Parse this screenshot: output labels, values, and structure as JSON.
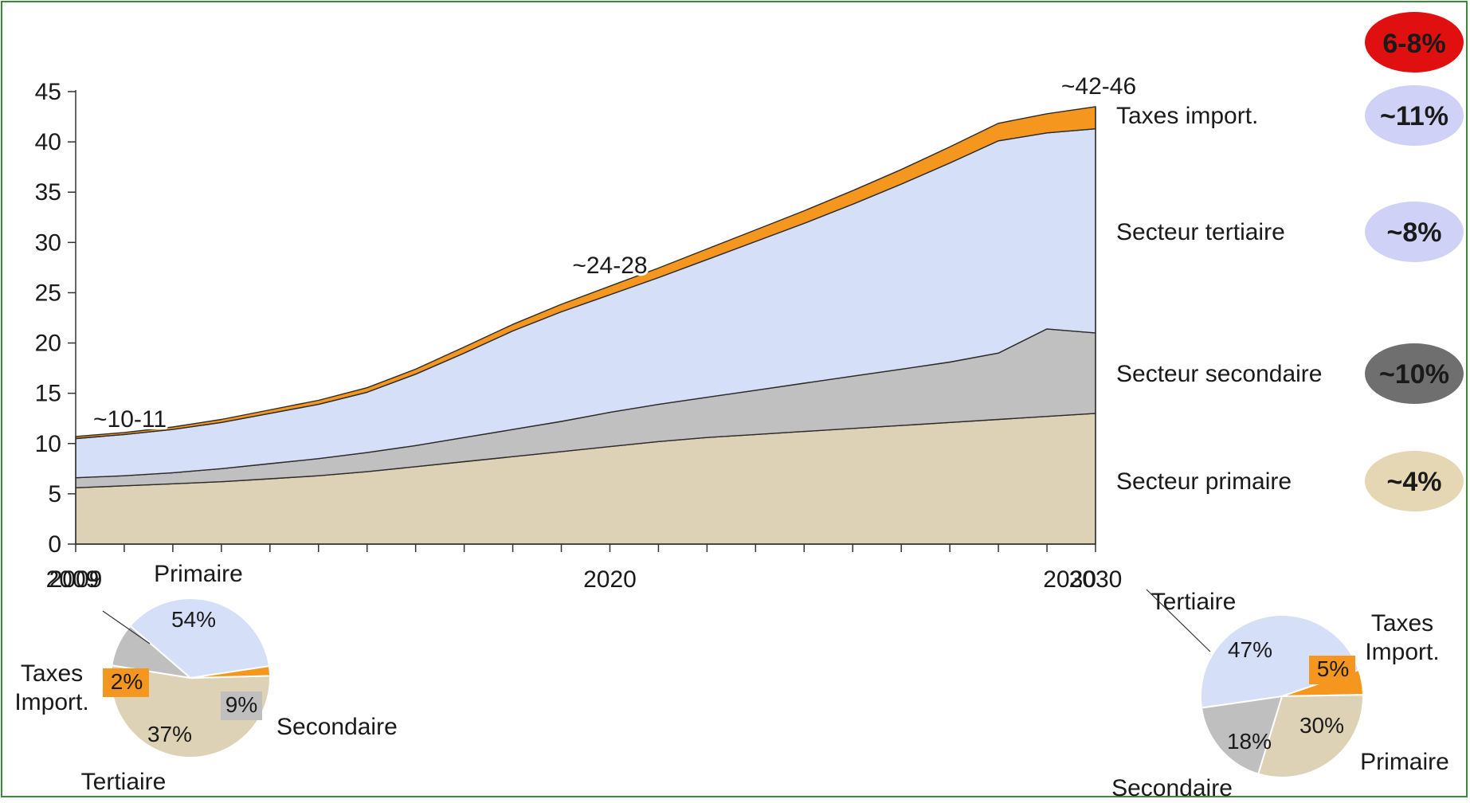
{
  "chart_data": {
    "type": "area",
    "stacked": true,
    "x": [
      2009,
      2010,
      2011,
      2012,
      2013,
      2014,
      2015,
      2016,
      2017,
      2018,
      2019,
      2020,
      2021,
      2022,
      2023,
      2024,
      2025,
      2026,
      2027,
      2028,
      2029,
      2030
    ],
    "x_tick_labels": [
      "2009",
      "2020",
      "2030"
    ],
    "ylim": [
      0,
      45
    ],
    "y_ticks": [
      "0",
      "5",
      "10",
      "15",
      "20",
      "25",
      "30",
      "35",
      "40",
      "45"
    ],
    "grid": false,
    "series": [
      {
        "name": "Secteur primaire",
        "color": "#ddd2b5",
        "values": [
          5.6,
          5.8,
          6.0,
          6.2,
          6.5,
          6.8,
          7.2,
          7.7,
          8.2,
          8.7,
          9.2,
          9.7,
          10.2,
          10.6,
          10.9,
          11.2,
          11.5,
          11.8,
          12.1,
          12.4,
          12.7,
          13.0
        ]
      },
      {
        "name": "Secteur secondaire",
        "color": "#c0c0c0",
        "values": [
          1.0,
          1.0,
          1.1,
          1.3,
          1.5,
          1.7,
          1.9,
          2.1,
          2.4,
          2.7,
          3.0,
          3.4,
          3.7,
          4.0,
          4.4,
          4.8,
          5.2,
          5.6,
          6.0,
          6.6,
          8.7,
          8.0
        ]
      },
      {
        "name": "Secteur tertiaire",
        "color": "#d6dff8",
        "values": [
          3.9,
          4.1,
          4.3,
          4.6,
          5.0,
          5.4,
          6.0,
          7.1,
          8.4,
          9.8,
          10.9,
          11.7,
          12.6,
          13.7,
          14.8,
          15.9,
          17.1,
          18.4,
          19.8,
          21.1,
          19.5,
          20.3
        ]
      },
      {
        "name": "Taxes import.",
        "color": "#f5961e",
        "values": [
          0.2,
          0.2,
          0.25,
          0.3,
          0.35,
          0.4,
          0.45,
          0.5,
          0.6,
          0.65,
          0.75,
          0.85,
          0.95,
          1.05,
          1.15,
          1.25,
          1.35,
          1.45,
          1.6,
          1.75,
          1.9,
          2.2
        ]
      }
    ],
    "annotations": [
      {
        "x": 2009,
        "text": "~10-11"
      },
      {
        "x": 2020,
        "text": "~24-28"
      },
      {
        "x": 2030,
        "text": "~42-46"
      }
    ],
    "legend": [
      {
        "label": "Taxes import.",
        "growth": "~11%",
        "badge_color": "#cfd2f6",
        "text_color": "#1a1a1a"
      },
      {
        "label": "Secteur tertiaire",
        "growth": "~8%",
        "badge_color": "#cfd2f6",
        "text_color": "#1a1a1a"
      },
      {
        "label": "Secteur secondaire",
        "growth": "~10%",
        "badge_color": "#6f6f6f",
        "text_color": "#ffffff"
      },
      {
        "label": "Secteur primaire",
        "growth": "~4%",
        "badge_color": "#e6d7b4",
        "text_color": "#1a1a1a"
      }
    ],
    "total_growth": {
      "text": "6-8%",
      "color": "#e01010",
      "text_color": "#ffffff"
    },
    "pies": [
      {
        "year": "2009",
        "slices": [
          {
            "name": "Primaire",
            "value": 54,
            "label": "54%",
            "color": "#ddd2b5"
          },
          {
            "name": "Secondaire",
            "value": 9,
            "label": "9%",
            "color": "#bfbfbf"
          },
          {
            "name": "Tertiaire",
            "value": 37,
            "label": "37%",
            "color": "#d6dff8"
          },
          {
            "name": "Taxes Import.",
            "value": 2,
            "label": "2%",
            "color": "#f5961e"
          }
        ]
      },
      {
        "year": "2030",
        "slices": [
          {
            "name": "Taxes Import.",
            "value": 5,
            "label": "5%",
            "color": "#f5961e"
          },
          {
            "name": "Primaire",
            "value": 30,
            "label": "30%",
            "color": "#ddd2b5"
          },
          {
            "name": "Secondaire",
            "value": 18,
            "label": "18%",
            "color": "#bfbfbf"
          },
          {
            "name": "Tertiaire",
            "value": 47,
            "label": "47%",
            "color": "#d6dff8"
          }
        ]
      }
    ]
  }
}
